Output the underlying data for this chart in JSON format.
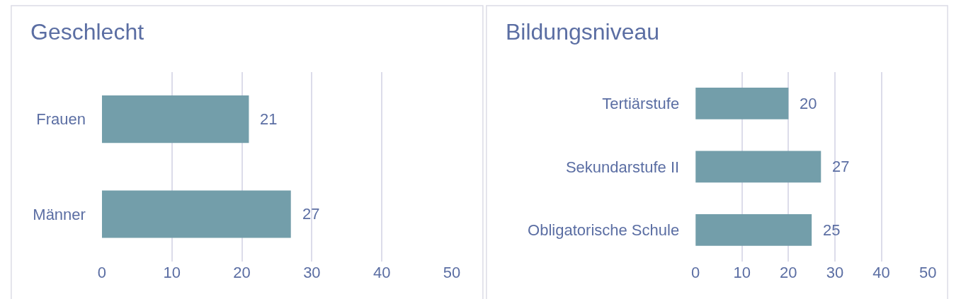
{
  "chart_data": [
    {
      "type": "bar",
      "orientation": "horizontal",
      "title": "Geschlecht",
      "categories": [
        "Frauen",
        "Männer"
      ],
      "values": [
        21,
        27
      ],
      "color": "#739eaa",
      "xlim": [
        0,
        50
      ],
      "xticks": [
        0,
        10,
        20,
        30,
        40,
        50
      ],
      "grid": "x",
      "data_labels": true
    },
    {
      "type": "bar",
      "orientation": "horizontal",
      "title": "Bildungsniveau",
      "categories": [
        "Tertiärstufe",
        "Sekundarstufe II",
        "Obligatorische Schule"
      ],
      "values": [
        20,
        27,
        25
      ],
      "color": "#739eaa",
      "xlim": [
        0,
        50
      ],
      "xticks": [
        0,
        10,
        20,
        30,
        40,
        50
      ],
      "grid": "x",
      "data_labels": true
    }
  ]
}
